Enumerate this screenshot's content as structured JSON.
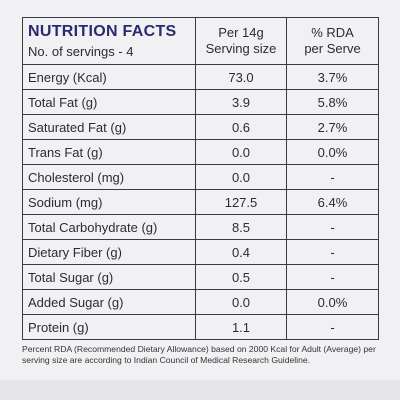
{
  "header": {
    "title": "NUTRITION FACTS",
    "servings": "No. of servings - 4",
    "per_serving": [
      "Per 14g",
      "Serving size"
    ],
    "rda": [
      "% RDA",
      "per Serve"
    ]
  },
  "table": {
    "rows": [
      [
        "Energy (Kcal)",
        "73.0",
        "3.7%"
      ],
      [
        "Total Fat (g)",
        "3.9",
        "5.8%"
      ],
      [
        "Saturated Fat (g)",
        "0.6",
        "2.7%"
      ],
      [
        "Trans Fat (g)",
        "0.0",
        "0.0%"
      ],
      [
        "Cholesterol (mg)",
        "0.0",
        "-"
      ],
      [
        "Sodium (mg)",
        "127.5",
        "6.4%"
      ],
      [
        "Total Carbohydrate (g)",
        "8.5",
        "-"
      ],
      [
        "Dietary Fiber (g)",
        "0.4",
        "-"
      ],
      [
        "Total Sugar (g)",
        "0.5",
        "-"
      ],
      [
        "Added Sugar (g)",
        "0.0",
        "0.0%"
      ],
      [
        "Protein (g)",
        "1.1",
        "-"
      ]
    ]
  },
  "footnote": "Percent RDA (Recommended Dietary Allowance) based on 2000 Kcal for Adult (Average) per serving size are according to Indian Council of Medical Research Guideline."
}
